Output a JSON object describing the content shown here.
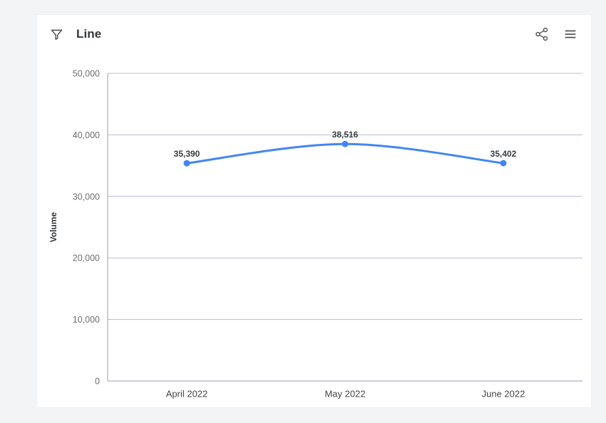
{
  "header": {
    "title": "Line",
    "filter_icon": "filter-icon",
    "share_icon": "share-icon",
    "menu_icon": "menu-icon"
  },
  "colors": {
    "page_bg": "#f3f4f6",
    "card_bg": "#ffffff",
    "line": "#4285f4",
    "point": "#4285f4",
    "grid": "#b9bcd6",
    "axis": "#989cbe",
    "title_text": "#32363a",
    "ytick_text": "#6b6f73",
    "category_text": "#45474b",
    "data_label_text": "#393c40",
    "icon": "#4a4d51"
  },
  "chart_data": {
    "type": "line",
    "title": "Line",
    "categories": [
      "April 2022",
      "May 2022",
      "June 2022"
    ],
    "series": [
      {
        "name": "Volume",
        "values": [
          35390,
          38516,
          35402
        ],
        "labels": [
          "35,390",
          "38,516",
          "35,402"
        ]
      }
    ],
    "xlabel": "",
    "ylabel": "Volume",
    "ylim": [
      0,
      50000
    ],
    "yticks": [
      0,
      10000,
      20000,
      30000,
      40000,
      50000
    ],
    "ytick_labels": [
      "0",
      "10,000",
      "20,000",
      "30,000",
      "40,000",
      "50,000"
    ],
    "grid": true,
    "legend_position": "none",
    "smooth": true,
    "show_data_labels": true
  }
}
